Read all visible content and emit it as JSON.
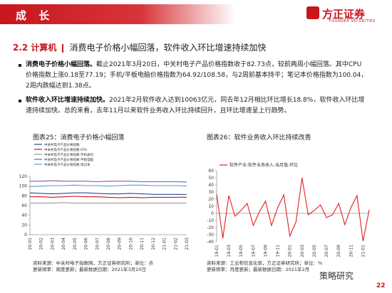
{
  "header": {
    "title": "成 长",
    "logo": "方正证券",
    "logo_sub": "FOUNDER SECURITIES"
  },
  "section": {
    "number": "2.2 计算机",
    "title": "消费电子价格小幅回落，软件收入环比增速持续加快"
  },
  "bullets": [
    {
      "lead": "消费电子价格小幅回落。",
      "text": "截止2021年3月20日，中关村电子产品价格指数收于82.73点，较前两周小幅回落。其中CPU价格指数上涨0.18至77.19；手机/平板电脑价格指数为64.92/108.58，与2周前基本持平；笔记本价格指数为100.04，2周内跌幅达到1.38点。"
    },
    {
      "lead": "软件收入环比增速持续加快。",
      "text": "2021年2月软件收入达到10063亿元，同去年12月相比环比增长18.8%，软件收入环比增速持续加快。总的来看，去年11月以来软件业务收入环比持续回升，且环比增速呈上行趋势。"
    }
  ],
  "chart_data": [
    {
      "type": "line",
      "title": "图表25：消费电子价格小幅回落",
      "categories": [
        "20-01",
        "20-02",
        "20-03",
        "20-04",
        "20-05",
        "20-06",
        "20-07",
        "20-08",
        "20-09",
        "20-10",
        "20-11",
        "20-12",
        "21-01",
        "21-02",
        "21-03"
      ],
      "series": [
        {
          "name": "中关村电子产品价格指数",
          "color": "#1f4e9c",
          "values": [
            86,
            85,
            84,
            85,
            86,
            86,
            85,
            84,
            84,
            85,
            84,
            83,
            83,
            83,
            82.73
          ]
        },
        {
          "name": "中关村电子产品价格指数:CPU",
          "color": "#c8161d",
          "values": [
            78,
            78,
            77,
            78,
            79,
            78,
            78,
            77,
            76,
            77,
            76,
            77,
            77,
            77,
            77.19
          ]
        },
        {
          "name": "中关村电子产品价格指数:手机通讯",
          "color": "#9a9a9a",
          "values": [
            65,
            65,
            65,
            66,
            65,
            65,
            65,
            65,
            65,
            65,
            65,
            65,
            65,
            65,
            64.92
          ]
        },
        {
          "name": "中关村电子产品价格指数:平板电脑",
          "color": "#7b5ea7",
          "values": [
            110,
            110,
            111,
            110,
            110,
            110,
            109,
            110,
            110,
            110,
            109,
            109,
            109,
            109,
            108.58
          ]
        },
        {
          "name": "中关村电子产品价格指数:笔记本",
          "color": "#4ea1d3",
          "values": [
            99,
            100,
            101,
            101,
            102,
            101,
            101,
            100,
            101,
            102,
            102,
            101,
            101,
            101,
            100.04
          ]
        }
      ],
      "ylim": [
        0,
        120
      ],
      "yticks": [
        0,
        20,
        40,
        60,
        80,
        100,
        120
      ],
      "source": "资料来源：中关村电子指数网，方正证券研究所；单位：点",
      "update": "更新频率：周度更新；最新数据日期：2021年3月20日"
    },
    {
      "type": "line",
      "title": "图表26：软件业务收入环比持续改善",
      "categories": [
        "19-01",
        null,
        "19-03",
        null,
        "19-05",
        null,
        "19-07",
        null,
        "19-09",
        null,
        "19-11",
        null,
        "20-01",
        null,
        "20-03",
        null,
        "20-05",
        null,
        "20-07",
        null,
        "20-09",
        null,
        "20-11",
        null,
        "21-01",
        null
      ],
      "series": [
        {
          "name": "软件产业:软件业务收入:当月值:环比",
          "color": "#e02020",
          "values": [
            27,
            -35,
            25,
            -4,
            4,
            14,
            -17,
            2,
            17,
            -17,
            8,
            26,
            -32,
            -12,
            50,
            -2,
            4,
            12,
            -6,
            -2,
            14,
            -16,
            8,
            25,
            -39,
            5
          ]
        }
      ],
      "ylim": [
        -40,
        60
      ],
      "yticks": [
        -40,
        -30,
        -20,
        -10,
        0,
        10,
        20,
        30,
        40,
        50,
        60
      ],
      "source": "资料来源：工业和信息化部，方正证券研究所；单位：%",
      "update": "更新频率：月度更新；最新数据日期：2021年2月"
    }
  ],
  "page_number": "22",
  "wechat": "策略研究"
}
